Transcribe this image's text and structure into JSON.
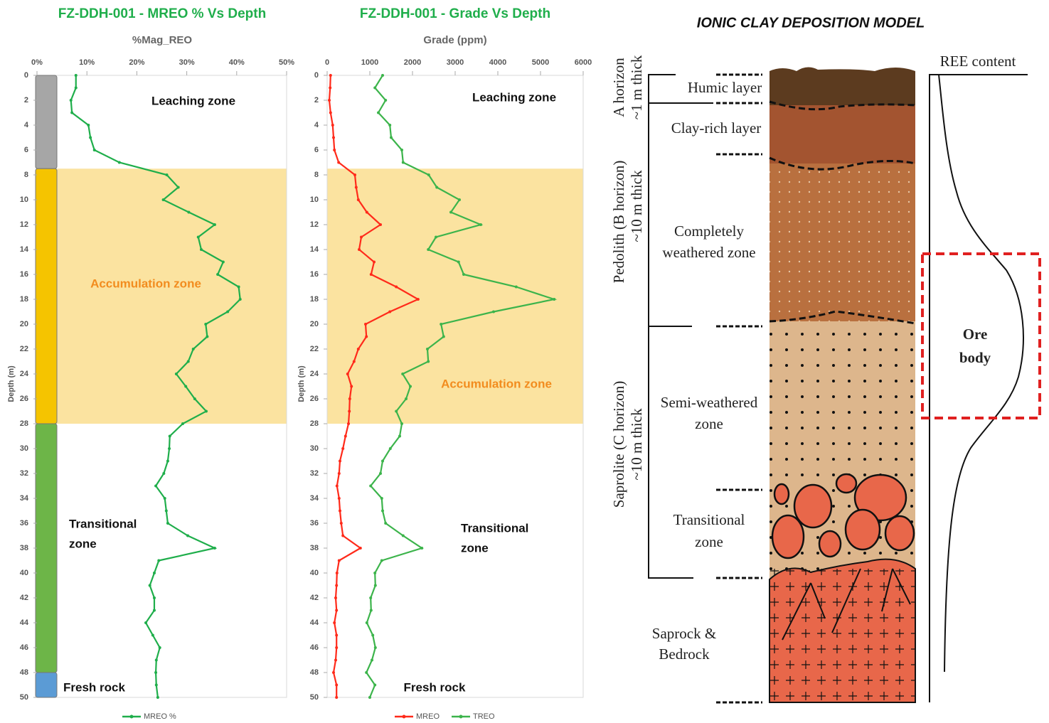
{
  "chart_data": [
    {
      "type": "line",
      "title": "FZ-DDH-001 - MREO % Vs Depth",
      "xlabel": "%Mag_REO",
      "ylabel": "Depth (m)",
      "depth": [
        0,
        1,
        2,
        3,
        4,
        5,
        6,
        7,
        8,
        9,
        10,
        11,
        12,
        13,
        14,
        15,
        16,
        17,
        18,
        19,
        20,
        21,
        22,
        23,
        24,
        25,
        26,
        27,
        28,
        29,
        30,
        31,
        32,
        33,
        34,
        35,
        36,
        37,
        38,
        39,
        40,
        41,
        42,
        43,
        44,
        45,
        46,
        47,
        48,
        49,
        50
      ],
      "series": [
        {
          "name": "MREO %",
          "color": "#1fae4b",
          "values": [
            7.8,
            7.8,
            6.8,
            7.0,
            10.3,
            10.7,
            11.5,
            16.5,
            26.0,
            28.3,
            25.3,
            30.4,
            35.6,
            32.3,
            32.9,
            37.3,
            36.2,
            40.4,
            40.7,
            38.2,
            33.8,
            34.1,
            31.3,
            30.3,
            27.9,
            29.8,
            31.6,
            33.9,
            29.2,
            26.6,
            26.5,
            26.2,
            25.4,
            23.8,
            25.6,
            25.9,
            26.2,
            30.2,
            35.6,
            24.4,
            23.5,
            22.6,
            23.5,
            23.5,
            21.8,
            23.2,
            24.6,
            23.9,
            23.8,
            23.9,
            24.2
          ]
        }
      ],
      "xlim": [
        0,
        50
      ],
      "xticks": [
        {
          "value": 0,
          "label": "0%"
        },
        {
          "value": 10,
          "label": "10%"
        },
        {
          "value": 20,
          "label": "20%"
        },
        {
          "value": 30,
          "label": "30%"
        },
        {
          "value": 40,
          "label": "40%"
        },
        {
          "value": 50,
          "label": "50%"
        }
      ],
      "ylim": [
        0,
        50
      ],
      "y_inverted": true,
      "yticks": [
        0,
        2,
        4,
        6,
        8,
        10,
        12,
        14,
        16,
        18,
        20,
        22,
        24,
        26,
        28,
        30,
        32,
        34,
        36,
        38,
        40,
        42,
        44,
        46,
        48,
        50
      ],
      "band": [
        7.5,
        28
      ],
      "band_color": "#fbe3a0",
      "strip": [
        {
          "from": 0,
          "to": 7.5,
          "color": "#a6a6a6"
        },
        {
          "from": 7.5,
          "to": 28,
          "color": "#f5c400"
        },
        {
          "from": 28,
          "to": 48,
          "color": "#6db548"
        },
        {
          "from": 48,
          "to": 50,
          "color": "#5b9bd5"
        }
      ],
      "annotations": [
        {
          "text": [
            "Leaching zone"
          ],
          "color": "#111111"
        },
        {
          "text": [
            "Accumulation  zone"
          ],
          "color": "#f28c1e"
        },
        {
          "text": [
            "Transitional",
            "zone"
          ],
          "color": "#111111"
        },
        {
          "text": [
            "Fresh rock"
          ],
          "color": "#111111"
        }
      ]
    },
    {
      "type": "line",
      "title": "FZ-DDH-001 - Grade Vs Depth",
      "xlabel": "Grade (ppm)",
      "ylabel": "Depth (m)",
      "depth": [
        0,
        1,
        2,
        3,
        4,
        5,
        6,
        7,
        8,
        9,
        10,
        11,
        12,
        13,
        14,
        15,
        16,
        17,
        18,
        19,
        20,
        21,
        22,
        23,
        24,
        25,
        26,
        27,
        28,
        29,
        30,
        31,
        32,
        33,
        34,
        35,
        36,
        37,
        38,
        39,
        40,
        41,
        42,
        43,
        44,
        45,
        46,
        47,
        48,
        49,
        50
      ],
      "series": [
        {
          "name": "MREO",
          "color": "#ff2a1a",
          "values": [
            80,
            70,
            50,
            80,
            130,
            150,
            170,
            270,
            650,
            680,
            730,
            930,
            1250,
            800,
            750,
            1100,
            1030,
            1620,
            2130,
            1470,
            900,
            920,
            730,
            630,
            480,
            570,
            530,
            520,
            500,
            430,
            370,
            300,
            280,
            230,
            280,
            300,
            330,
            370,
            780,
            280,
            230,
            220,
            200,
            220,
            170,
            220,
            220,
            200,
            150,
            220,
            220
          ]
        },
        {
          "name": "TREO",
          "color": "#3cb44b",
          "values": [
            1300,
            1120,
            1370,
            1200,
            1470,
            1500,
            1750,
            1780,
            2380,
            2570,
            3100,
            2900,
            3600,
            2550,
            2370,
            3080,
            3200,
            4430,
            5320,
            3900,
            2670,
            2730,
            2350,
            2370,
            1770,
            1950,
            1850,
            1620,
            1750,
            1700,
            1480,
            1300,
            1250,
            1020,
            1280,
            1300,
            1370,
            1780,
            2220,
            1280,
            1120,
            1130,
            1020,
            1030,
            930,
            1070,
            1130,
            1050,
            920,
            1120,
            1000
          ]
        }
      ],
      "xlim": [
        0,
        6000
      ],
      "xticks": [
        0,
        1000,
        2000,
        3000,
        4000,
        5000,
        6000
      ],
      "ylim": [
        0,
        50
      ],
      "y_inverted": true,
      "yticks": [
        0,
        2,
        4,
        6,
        8,
        10,
        12,
        14,
        16,
        18,
        20,
        22,
        24,
        26,
        28,
        30,
        32,
        34,
        36,
        38,
        40,
        42,
        44,
        46,
        48,
        50
      ],
      "band": [
        7.5,
        28
      ],
      "band_color": "#fbe3a0",
      "annotations": [
        {
          "text": [
            "Leaching zone"
          ],
          "color": "#111111"
        },
        {
          "text": [
            "Accumulation zone"
          ],
          "color": "#f28c1e"
        },
        {
          "text": [
            "Transitional",
            "zone"
          ],
          "color": "#111111"
        },
        {
          "text": [
            "Fresh rock"
          ],
          "color": "#111111"
        }
      ]
    }
  ],
  "diagram": {
    "title": "IONIC CLAY DEPOSITION MODEL",
    "layers": [
      {
        "label": [
          "Humic layer"
        ]
      },
      {
        "label": [
          "Clay-rich layer"
        ]
      },
      {
        "label": [
          "Completely",
          "weathered zone"
        ]
      },
      {
        "label": [
          "Semi-weathered",
          "zone"
        ]
      },
      {
        "label": [
          "Transitional",
          "zone"
        ]
      },
      {
        "label": [
          "Saprock &",
          "Bedrock"
        ]
      }
    ],
    "horizons": [
      {
        "name": "A horizon",
        "thickness": "~1 m thick"
      },
      {
        "name": "Pedolith (B horizon)",
        "thickness": "~10 m thick"
      },
      {
        "name": "Saprolite (C horizon)",
        "thickness": "~10 m thick"
      }
    ],
    "profile_label": "REE content",
    "ore_label": [
      "Ore",
      "body"
    ]
  }
}
